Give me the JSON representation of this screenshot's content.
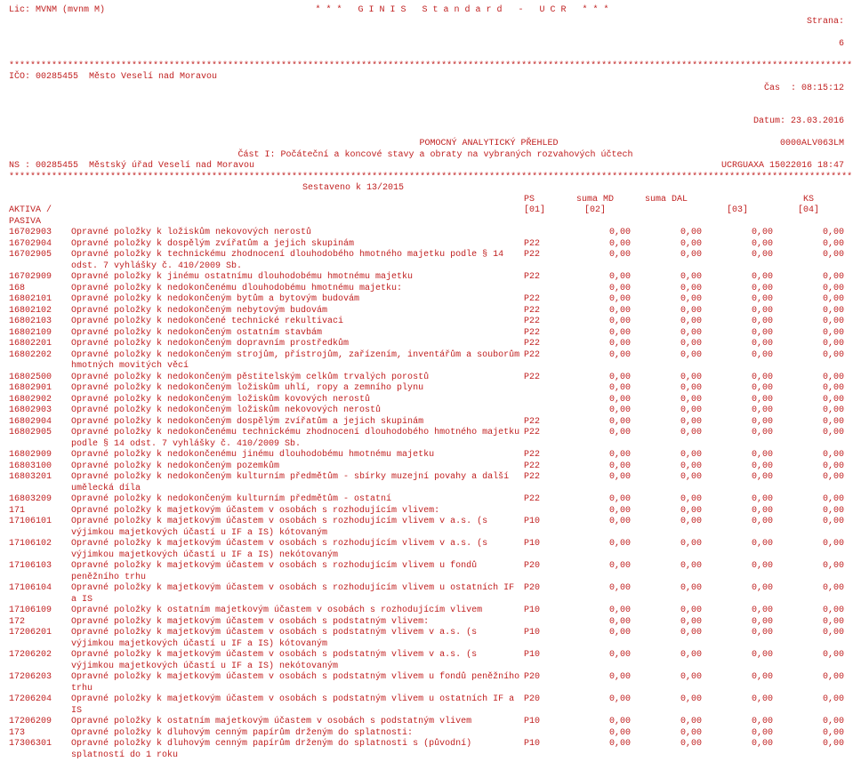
{
  "header": {
    "lic": "Lic: MVNM (mvnm M)",
    "app": "* * *   G I N I S   S t a n d a r d   -   U C R   * * *",
    "page_label": "Strana:",
    "page_no": "6",
    "ico": "IČO: 00285455  Město Veselí nad Moravou",
    "time_label": "Čas  :",
    "time": "08:15:12",
    "date_label": "Datum:",
    "date": "23.03.2016",
    "subtitle1": "POMOCNÝ ANALYTICKÝ PŘEHLED",
    "subtitle2": "Část I: Počáteční a koncové stavy a obraty na vybraných rozvahových účtech",
    "code_tiny": "0000ALV063LM",
    "ns": "NS : 00285455  Městský úřad Veselí nad Moravou",
    "ucrguaxa": "UCRGUAXA 15022016 18:47",
    "compiled": "Sestaveno k 13/2015",
    "col_ps": "PS",
    "col_md": "suma MD",
    "col_dal": "suma DAL",
    "col_ks": "KS",
    "aktiva": "AKTIVA / PASIVA",
    "c01": "[01]",
    "c02": "[02]",
    "c03": "[03]",
    "c04": "[04]",
    "star_line": "********************************************************************************************************************************************************************"
  },
  "rows": [
    {
      "code": "16702903",
      "name": "Opravné položky k ložiskům nekovových nerostů",
      "p": "",
      "md": "0,00",
      "dal": "0,00",
      "c3": "0,00",
      "ks": "0,00"
    },
    {
      "code": "16702904",
      "name": "Opravné položky k dospělým zvířatům a jejich skupinám",
      "p": "P22",
      "md": "0,00",
      "dal": "0,00",
      "c3": "0,00",
      "ks": "0,00"
    },
    {
      "code": "16702905",
      "name": "Opravné položky k technickému zhodnocení dlouhodobého hmotného majetku podle § 14 odst. 7 vyhlášky č. 410/2009 Sb.",
      "p": "P22",
      "md": "0,00",
      "dal": "0,00",
      "c3": "0,00",
      "ks": "0,00"
    },
    {
      "code": "16702909",
      "name": "Opravné položky k jinému ostatnímu dlouhodobému hmotnému majetku",
      "p": "P22",
      "md": "0,00",
      "dal": "0,00",
      "c3": "0,00",
      "ks": "0,00"
    },
    {
      "code": "168",
      "name": "Opravné položky k nedokončenému dlouhodobému hmotnému majetku:",
      "p": "",
      "md": "0,00",
      "dal": "0,00",
      "c3": "0,00",
      "ks": "0,00"
    },
    {
      "code": "16802101",
      "name": "Opravné položky k nedokončeným bytům a bytovým budovám",
      "p": "P22",
      "md": "0,00",
      "dal": "0,00",
      "c3": "0,00",
      "ks": "0,00"
    },
    {
      "code": "16802102",
      "name": "Opravné položky k nedokončeným nebytovým budovám",
      "p": "P22",
      "md": "0,00",
      "dal": "0,00",
      "c3": "0,00",
      "ks": "0,00"
    },
    {
      "code": "16802103",
      "name": "Opravné položky k nedokončené technické rekultivaci",
      "p": "P22",
      "md": "0,00",
      "dal": "0,00",
      "c3": "0,00",
      "ks": "0,00"
    },
    {
      "code": "16802109",
      "name": "Opravné položky k nedokončeným ostatním stavbám",
      "p": "P22",
      "md": "0,00",
      "dal": "0,00",
      "c3": "0,00",
      "ks": "0,00"
    },
    {
      "code": "16802201",
      "name": "Opravné položky k nedokončeným dopravním prostředkům",
      "p": "P22",
      "md": "0,00",
      "dal": "0,00",
      "c3": "0,00",
      "ks": "0,00"
    },
    {
      "code": "16802202",
      "name": "Opravné položky k nedokončeným strojům, přístrojům, zařízením, inventářům a souborům hmotných movitých věcí",
      "p": "P22",
      "md": "0,00",
      "dal": "0,00",
      "c3": "0,00",
      "ks": "0,00"
    },
    {
      "code": "16802500",
      "name": "Opravné položky k nedokončeným pěstitelským celkům trvalých porostů",
      "p": "P22",
      "md": "0,00",
      "dal": "0,00",
      "c3": "0,00",
      "ks": "0,00"
    },
    {
      "code": "16802901",
      "name": "Opravné položky k nedokončeným ložiskům uhlí, ropy a zemního plynu",
      "p": "",
      "md": "0,00",
      "dal": "0,00",
      "c3": "0,00",
      "ks": "0,00"
    },
    {
      "code": "16802902",
      "name": "Opravné položky k nedokončeným ložiskům kovových nerostů",
      "p": "",
      "md": "0,00",
      "dal": "0,00",
      "c3": "0,00",
      "ks": "0,00"
    },
    {
      "code": "16802903",
      "name": "Opravné položky k nedokončeným ložiskům nekovových nerostů",
      "p": "",
      "md": "0,00",
      "dal": "0,00",
      "c3": "0,00",
      "ks": "0,00"
    },
    {
      "code": "16802904",
      "name": "Opravné položky k nedokončeným dospělým zvířatům a jejich skupinám",
      "p": "P22",
      "md": "0,00",
      "dal": "0,00",
      "c3": "0,00",
      "ks": "0,00"
    },
    {
      "code": "16802905",
      "name": "Opravné položky k nedokončenému technickému zhodnocení dlouhodobého hmotného majetku podle § 14 odst. 7 vyhlášky č. 410/2009 Sb.",
      "p": "P22",
      "md": "0,00",
      "dal": "0,00",
      "c3": "0,00",
      "ks": "0,00"
    },
    {
      "code": "16802909",
      "name": "Opravné položky k nedokončenému jinému dlouhodobému hmotnému majetku",
      "p": "P22",
      "md": "0,00",
      "dal": "0,00",
      "c3": "0,00",
      "ks": "0,00"
    },
    {
      "code": "16803100",
      "name": "Opravné položky k nedokončeným pozemkům",
      "p": "P22",
      "md": "0,00",
      "dal": "0,00",
      "c3": "0,00",
      "ks": "0,00"
    },
    {
      "code": "16803201",
      "name": "Opravné položky k nedokončeným kulturním předmětům - sbírky muzejní povahy a další umělecká díla",
      "p": "P22",
      "md": "0,00",
      "dal": "0,00",
      "c3": "0,00",
      "ks": "0,00"
    },
    {
      "code": "16803209",
      "name": "Opravné položky k nedokončeným kulturním předmětům - ostatní",
      "p": "P22",
      "md": "0,00",
      "dal": "0,00",
      "c3": "0,00",
      "ks": "0,00"
    },
    {
      "code": "171",
      "name": "Opravné položky k majetkovým účastem v osobách s rozhodujícím vlivem:",
      "p": "",
      "md": "0,00",
      "dal": "0,00",
      "c3": "0,00",
      "ks": "0,00"
    },
    {
      "code": "17106101",
      "name": "Opravné položky k majetkovým účastem v osobách s rozhodujícím vlivem v a.s. (s výjimkou majetkových účastí u IF a IS) kótovaným",
      "p": "P10",
      "md": "0,00",
      "dal": "0,00",
      "c3": "0,00",
      "ks": "0,00"
    },
    {
      "code": "17106102",
      "name": "Opravné položky k majetkovým účastem v osobách s rozhodujícím vlivem v a.s. (s výjimkou majetkových účastí u IF a IS) nekótovaným",
      "p": "P10",
      "md": "0,00",
      "dal": "0,00",
      "c3": "0,00",
      "ks": "0,00"
    },
    {
      "code": "17106103",
      "name": "Opravné položky k majetkovým účastem v osobách s rozhodujícím vlivem u fondů peněžního trhu",
      "p": "P20",
      "md": "0,00",
      "dal": "0,00",
      "c3": "0,00",
      "ks": "0,00"
    },
    {
      "code": "17106104",
      "name": "Opravné položky k majetkovým účastem v osobách s rozhodujícím vlivem u ostatních IF a IS",
      "p": "P20",
      "md": "0,00",
      "dal": "0,00",
      "c3": "0,00",
      "ks": "0,00"
    },
    {
      "code": "17106109",
      "name": "Opravné položky k ostatním majetkovým účastem v osobách s rozhodujícím vlivem",
      "p": "P10",
      "md": "0,00",
      "dal": "0,00",
      "c3": "0,00",
      "ks": "0,00"
    },
    {
      "code": "172",
      "name": "Opravné položky k majetkovým účastem v osobách s podstatným vlivem:",
      "p": "",
      "md": "0,00",
      "dal": "0,00",
      "c3": "0,00",
      "ks": "0,00"
    },
    {
      "code": "17206201",
      "name": "Opravné položky k majetkovým účastem v osobách s podstatným vlivem v a.s. (s výjimkou majetkových účastí u IF a IS) kótovaným",
      "p": "P10",
      "md": "0,00",
      "dal": "0,00",
      "c3": "0,00",
      "ks": "0,00"
    },
    {
      "code": "17206202",
      "name": "Opravné položky k majetkovým účastem v osobách s podstatným vlivem v a.s. (s výjimkou majetkových účastí u IF a IS) nekótovaným",
      "p": "P10",
      "md": "0,00",
      "dal": "0,00",
      "c3": "0,00",
      "ks": "0,00"
    },
    {
      "code": "17206203",
      "name": "Opravné položky k majetkovým účastem v osobách s podstatným vlivem u fondů peněžního trhu",
      "p": "P20",
      "md": "0,00",
      "dal": "0,00",
      "c3": "0,00",
      "ks": "0,00"
    },
    {
      "code": "17206204",
      "name": "Opravné položky k majetkovým účastem v osobách s podstatným vlivem u ostatních IF a IS",
      "p": "P20",
      "md": "0,00",
      "dal": "0,00",
      "c3": "0,00",
      "ks": "0,00"
    },
    {
      "code": "17206209",
      "name": "Opravné položky k ostatním majetkovým účastem v osobách s podstatným vlivem",
      "p": "P10",
      "md": "0,00",
      "dal": "0,00",
      "c3": "0,00",
      "ks": "0,00"
    },
    {
      "code": "173",
      "name": "Opravné položky k dluhovým cenným papírům drženým do splatnosti:",
      "p": "",
      "md": "0,00",
      "dal": "0,00",
      "c3": "0,00",
      "ks": "0,00"
    },
    {
      "code": "17306301",
      "name": "Opravné položky k dluhovým cenným papírům drženým do splatnosti s (původní) splatností do 1 roku",
      "p": "P10",
      "md": "0,00",
      "dal": "0,00",
      "c3": "0,00",
      "ks": "0,00"
    }
  ]
}
